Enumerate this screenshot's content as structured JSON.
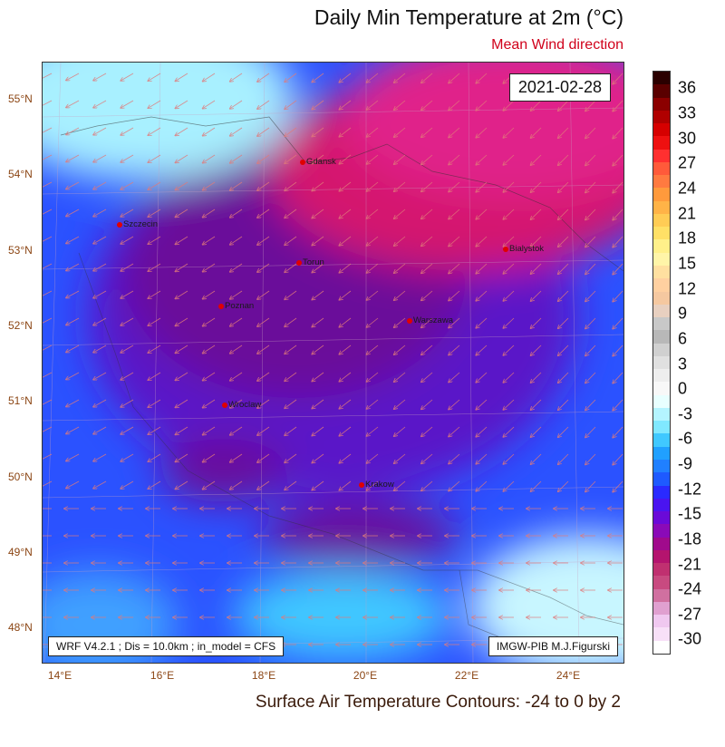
{
  "title": "Daily Min Temperature at 2m (°C)",
  "subtitle": "Mean Wind direction",
  "date": "2021-02-28",
  "info_left": "WRF V4.2.1 ; Dis = 10.0km ; in_model = CFS",
  "info_right": "IMGW-PIB M.J.Figurski",
  "footer": "Surface Air Temperature Contours: -24 to 0 by 2",
  "latitudes": [
    "55°N",
    "54°N",
    "53°N",
    "52°N",
    "51°N",
    "50°N",
    "49°N",
    "48°N"
  ],
  "longitudes": [
    "14°E",
    "16°E",
    "18°E",
    "20°E",
    "22°E",
    "24°E"
  ],
  "cities": [
    {
      "name": "Gdansk"
    },
    {
      "name": "Szczecin"
    },
    {
      "name": "Torun"
    },
    {
      "name": "Bialystok"
    },
    {
      "name": "Poznan"
    },
    {
      "name": "Warszawa"
    },
    {
      "name": "Wroclaw"
    },
    {
      "name": "Krakow"
    }
  ],
  "colorbar": {
    "labels": [
      "36",
      "33",
      "30",
      "27",
      "24",
      "21",
      "18",
      "15",
      "12",
      "9",
      "6",
      "3",
      "0",
      "-3",
      "-6",
      "-9",
      "-12",
      "-15",
      "-18",
      "-21",
      "-24",
      "-27",
      "-30"
    ],
    "colors": [
      "#2a0000",
      "#5a0000",
      "#8b0000",
      "#b00000",
      "#d60000",
      "#ee1010",
      "#ff3030",
      "#ff5a3a",
      "#ff7a40",
      "#ff9a3c",
      "#ffb347",
      "#ffcc55",
      "#ffe066",
      "#fff08a",
      "#fff5a8",
      "#ffe0a0",
      "#ffd0a0",
      "#f5c8a0",
      "#e8d0c0",
      "#c8c8c8",
      "#b8b8b8",
      "#d0d0d0",
      "#e0e0e0",
      "#eeeeee",
      "#f8f8f8",
      "#e8ffff",
      "#b4f4ff",
      "#80e8ff",
      "#40c8ff",
      "#20a0ff",
      "#2080ff",
      "#1e5aff",
      "#2a2aff",
      "#4a14f0",
      "#6a0ad8",
      "#8a0ab8",
      "#a00a8c",
      "#b4146e",
      "#c03070",
      "#c84a80",
      "#d070a0",
      "#e0a0d0",
      "#f0c8f0",
      "#f8e0f8",
      "#ffffff"
    ]
  }
}
